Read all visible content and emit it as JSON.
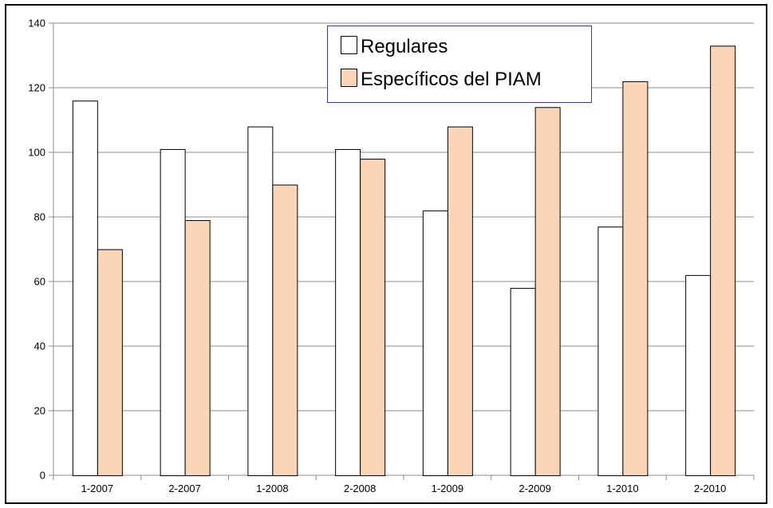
{
  "chart_data": {
    "type": "bar",
    "categories": [
      "1-2007",
      "2-2007",
      "1-2008",
      "2-2008",
      "1-2009",
      "2-2009",
      "1-2010",
      "2-2010"
    ],
    "series": [
      {
        "name": "Regulares",
        "values": [
          116,
          101,
          108,
          101,
          82,
          58,
          77,
          62
        ],
        "color": "#ffffff"
      },
      {
        "name": "Específicos del PIAM",
        "values": [
          70,
          79,
          90,
          98,
          108,
          114,
          122,
          133
        ],
        "color": "#fbd5b5"
      }
    ],
    "ylim": [
      0,
      140
    ],
    "yticks": [
      0,
      20,
      40,
      60,
      80,
      100,
      120,
      140
    ],
    "title": "",
    "xlabel": "",
    "ylabel": "",
    "grid": true,
    "legend_position": "top-center"
  }
}
